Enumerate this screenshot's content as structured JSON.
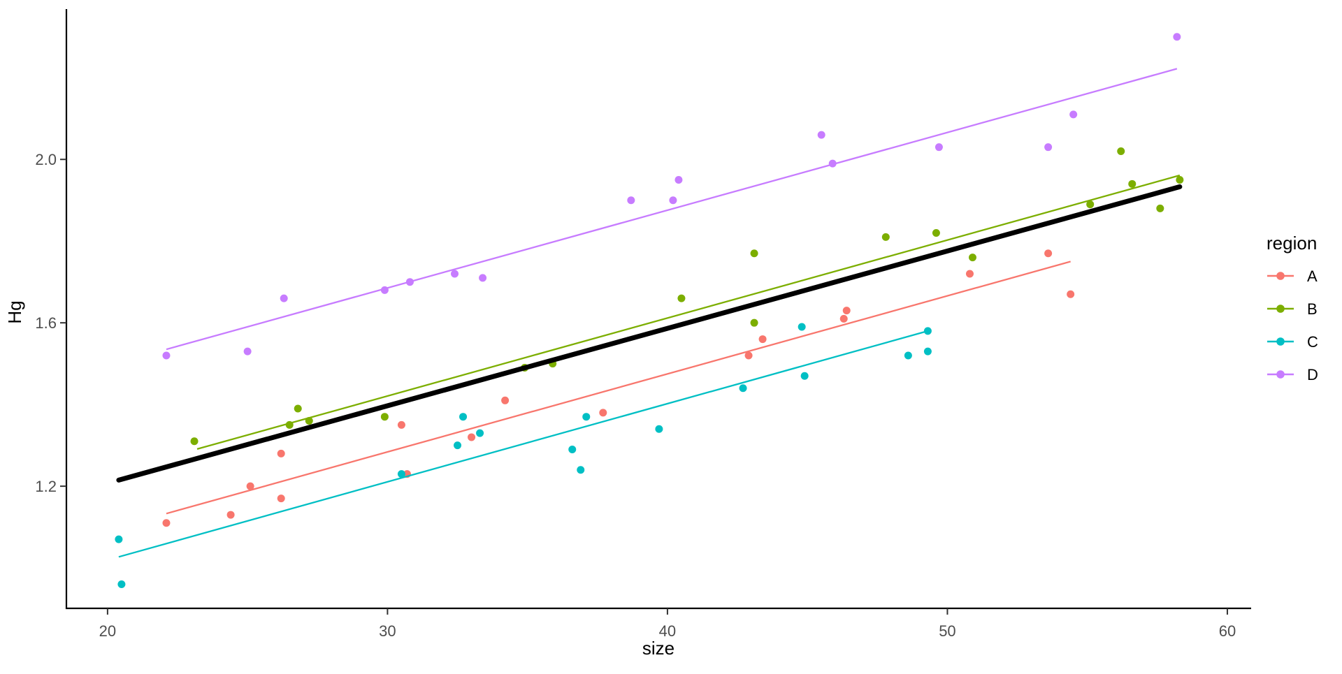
{
  "chart_data": {
    "type": "scatter",
    "title": "",
    "xlabel": "size",
    "ylabel": "Hg",
    "x_ticks": [
      20,
      30,
      40,
      50,
      60
    ],
    "y_ticks": [
      1.2,
      1.6,
      2.0
    ],
    "xlim": [
      18.53,
      60.85
    ],
    "ylim": [
      0.901,
      2.368
    ],
    "grid": false,
    "background": "#ffffff",
    "tick_label_color": "#4d4d4d",
    "axis_color": "#000000",
    "legend": {
      "title": "region",
      "position": "right"
    },
    "series": [
      {
        "name": "A",
        "color": "#F8766D",
        "points": [
          [
            22.1,
            1.11
          ],
          [
            24.4,
            1.13
          ],
          [
            25.1,
            1.2
          ],
          [
            26.2,
            1.28
          ],
          [
            26.2,
            1.17
          ],
          [
            30.5,
            1.35
          ],
          [
            30.7,
            1.23
          ],
          [
            33.0,
            1.32
          ],
          [
            34.2,
            1.41
          ],
          [
            37.7,
            1.38
          ],
          [
            42.9,
            1.52
          ],
          [
            43.4,
            1.56
          ],
          [
            46.3,
            1.61
          ],
          [
            46.4,
            1.63
          ],
          [
            50.8,
            1.72
          ],
          [
            53.6,
            1.77
          ],
          [
            54.4,
            1.67
          ]
        ],
        "trend": [
          [
            22.1,
            1.133
          ],
          [
            54.4,
            1.75
          ]
        ]
      },
      {
        "name": "B",
        "color": "#7CAE00",
        "points": [
          [
            23.1,
            1.31
          ],
          [
            26.5,
            1.35
          ],
          [
            26.8,
            1.39
          ],
          [
            27.2,
            1.36
          ],
          [
            29.9,
            1.37
          ],
          [
            34.9,
            1.49
          ],
          [
            35.9,
            1.5
          ],
          [
            40.5,
            1.66
          ],
          [
            43.1,
            1.6
          ],
          [
            43.1,
            1.77
          ],
          [
            47.8,
            1.81
          ],
          [
            49.6,
            1.82
          ],
          [
            50.9,
            1.76
          ],
          [
            55.1,
            1.89
          ],
          [
            56.2,
            2.02
          ],
          [
            56.6,
            1.94
          ],
          [
            57.6,
            1.88
          ],
          [
            58.3,
            1.95
          ]
        ],
        "trend": [
          [
            23.2,
            1.291
          ],
          [
            58.3,
            1.961
          ]
        ]
      },
      {
        "name": "C",
        "color": "#00BFC4",
        "points": [
          [
            20.4,
            1.07
          ],
          [
            20.5,
            0.96
          ],
          [
            30.5,
            1.23
          ],
          [
            32.5,
            1.3
          ],
          [
            32.7,
            1.37
          ],
          [
            33.3,
            1.33
          ],
          [
            36.6,
            1.29
          ],
          [
            36.9,
            1.24
          ],
          [
            37.1,
            1.37
          ],
          [
            39.7,
            1.34
          ],
          [
            42.7,
            1.44
          ],
          [
            44.8,
            1.59
          ],
          [
            44.9,
            1.47
          ],
          [
            48.6,
            1.52
          ],
          [
            49.3,
            1.53
          ],
          [
            49.3,
            1.58
          ]
        ],
        "trend": [
          [
            20.4,
            1.027
          ],
          [
            49.3,
            1.58
          ]
        ]
      },
      {
        "name": "D",
        "color": "#C77CFF",
        "points": [
          [
            22.1,
            1.52
          ],
          [
            25.0,
            1.53
          ],
          [
            26.3,
            1.66
          ],
          [
            29.9,
            1.68
          ],
          [
            30.8,
            1.7
          ],
          [
            32.4,
            1.72
          ],
          [
            33.4,
            1.71
          ],
          [
            38.7,
            1.9
          ],
          [
            40.2,
            1.9
          ],
          [
            40.4,
            1.95
          ],
          [
            45.5,
            2.06
          ],
          [
            45.9,
            1.99
          ],
          [
            49.7,
            2.03
          ],
          [
            53.6,
            2.03
          ],
          [
            54.5,
            2.11
          ],
          [
            58.2,
            2.3
          ]
        ],
        "trend": [
          [
            22.1,
            1.535
          ],
          [
            58.2,
            2.222
          ]
        ]
      }
    ],
    "overall_trend": {
      "name": "overall",
      "color": "#000000",
      "points": [
        [
          20.4,
          1.215
        ],
        [
          58.3,
          1.933
        ]
      ]
    }
  }
}
